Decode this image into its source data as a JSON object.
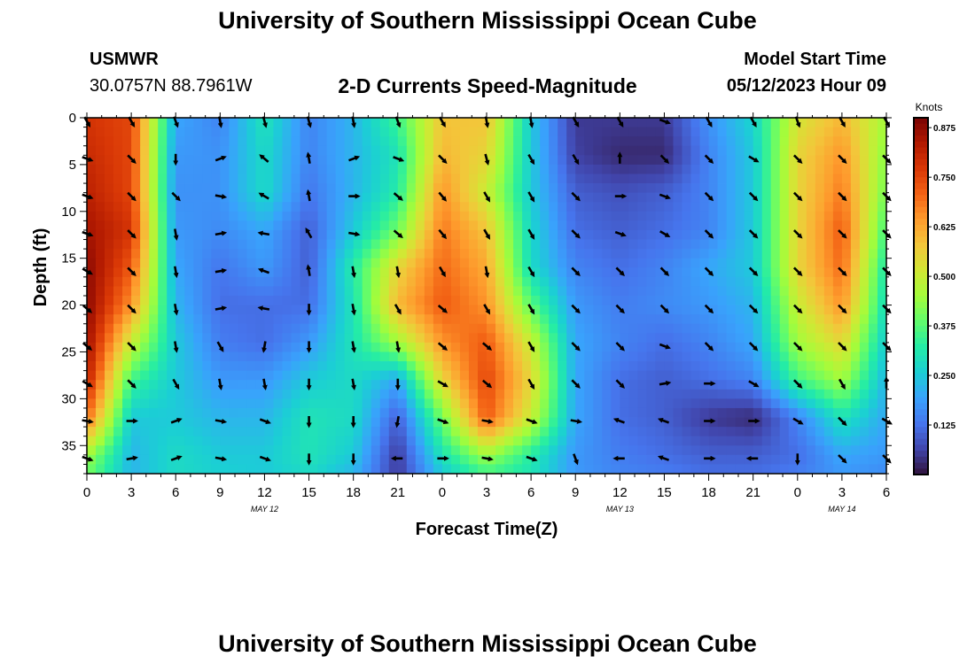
{
  "title": "University of Southern Mississippi Ocean Cube",
  "station": {
    "id": "USMWR",
    "coords": "30.0757N  88.7961W"
  },
  "model": {
    "label": "Model Start Time",
    "start": "05/12/2023 Hour 09"
  },
  "chart_data": {
    "type": "heatmap",
    "title": "2-D Currents Speed-Magnitude",
    "xlabel": "Forecast Time(Z)",
    "ylabel": "Depth (ft)",
    "x_unit": "forecast hours from 0Z May 12",
    "xlim": [
      0,
      54
    ],
    "ylim": [
      38,
      0
    ],
    "x_ticks": [
      {
        "hour": 0,
        "label": "0"
      },
      {
        "hour": 3,
        "label": "3"
      },
      {
        "hour": 6,
        "label": "6"
      },
      {
        "hour": 9,
        "label": "9"
      },
      {
        "hour": 12,
        "label": "12"
      },
      {
        "hour": 15,
        "label": "15"
      },
      {
        "hour": 18,
        "label": "18"
      },
      {
        "hour": 21,
        "label": "21"
      },
      {
        "hour": 24,
        "label": "0"
      },
      {
        "hour": 27,
        "label": "3"
      },
      {
        "hour": 30,
        "label": "6"
      },
      {
        "hour": 33,
        "label": "9"
      },
      {
        "hour": 36,
        "label": "12"
      },
      {
        "hour": 39,
        "label": "15"
      },
      {
        "hour": 42,
        "label": "18"
      },
      {
        "hour": 45,
        "label": "21"
      },
      {
        "hour": 48,
        "label": "0"
      },
      {
        "hour": 51,
        "label": "3"
      },
      {
        "hour": 54,
        "label": "6"
      }
    ],
    "date_labels": [
      {
        "hour": 12,
        "label": "MAY 12"
      },
      {
        "hour": 36,
        "label": "MAY 13"
      },
      {
        "hour": 51,
        "label": "MAY 14"
      }
    ],
    "y_ticks": [
      0,
      5,
      10,
      15,
      20,
      25,
      30,
      35
    ],
    "colorbar": {
      "unit": "Knots",
      "min": 0.0,
      "max": 0.9,
      "ticks": [
        "0.875",
        "0.750",
        "0.625",
        "0.500",
        "0.375",
        "0.250",
        "0.125"
      ],
      "tick_values": [
        0.875,
        0.75,
        0.625,
        0.5,
        0.375,
        0.25,
        0.125
      ],
      "colors": [
        "#30123b",
        "#4145ab",
        "#4675ed",
        "#39a2fc",
        "#1bcfd4",
        "#24eca6",
        "#61fc6c",
        "#a4fc3b",
        "#d1e834",
        "#f3c63a",
        "#fe9b2d",
        "#f36315",
        "#d93806",
        "#b11901",
        "#7a0403"
      ]
    },
    "speed_grid": {
      "hours": [
        0,
        3,
        6,
        9,
        12,
        15,
        18,
        21,
        24,
        27,
        30,
        33,
        36,
        39,
        42,
        45,
        48,
        51,
        54
      ],
      "depths": [
        0,
        4,
        8,
        12,
        16,
        20,
        24,
        28,
        32,
        36,
        38
      ],
      "values": [
        [
          0.78,
          0.75,
          0.2,
          0.15,
          0.3,
          0.15,
          0.22,
          0.35,
          0.58,
          0.58,
          0.25,
          0.05,
          0.05,
          0.05,
          0.17,
          0.27,
          0.52,
          0.6,
          0.45
        ],
        [
          0.8,
          0.75,
          0.18,
          0.17,
          0.28,
          0.15,
          0.22,
          0.3,
          0.6,
          0.55,
          0.25,
          0.06,
          0.03,
          0.03,
          0.15,
          0.25,
          0.55,
          0.65,
          0.42
        ],
        [
          0.82,
          0.75,
          0.17,
          0.17,
          0.28,
          0.13,
          0.22,
          0.32,
          0.65,
          0.5,
          0.25,
          0.1,
          0.08,
          0.1,
          0.15,
          0.25,
          0.55,
          0.68,
          0.4
        ],
        [
          0.85,
          0.78,
          0.18,
          0.16,
          0.2,
          0.1,
          0.25,
          0.4,
          0.68,
          0.58,
          0.27,
          0.12,
          0.1,
          0.12,
          0.15,
          0.25,
          0.55,
          0.72,
          0.35
        ],
        [
          0.88,
          0.72,
          0.2,
          0.13,
          0.18,
          0.1,
          0.32,
          0.55,
          0.7,
          0.62,
          0.28,
          0.15,
          0.12,
          0.15,
          0.2,
          0.25,
          0.55,
          0.7,
          0.3
        ],
        [
          0.88,
          0.65,
          0.22,
          0.12,
          0.12,
          0.12,
          0.3,
          0.6,
          0.72,
          0.65,
          0.38,
          0.18,
          0.14,
          0.16,
          0.18,
          0.22,
          0.5,
          0.65,
          0.28
        ],
        [
          0.86,
          0.5,
          0.25,
          0.14,
          0.12,
          0.18,
          0.3,
          0.45,
          0.65,
          0.72,
          0.5,
          0.2,
          0.15,
          0.12,
          0.15,
          0.2,
          0.45,
          0.55,
          0.25
        ],
        [
          0.82,
          0.35,
          0.25,
          0.18,
          0.18,
          0.25,
          0.28,
          0.2,
          0.55,
          0.75,
          0.55,
          0.2,
          0.12,
          0.1,
          0.12,
          0.15,
          0.35,
          0.45,
          0.22
        ],
        [
          0.7,
          0.25,
          0.25,
          0.22,
          0.22,
          0.3,
          0.28,
          0.1,
          0.4,
          0.72,
          0.5,
          0.2,
          0.12,
          0.1,
          0.05,
          0.03,
          0.15,
          0.3,
          0.2
        ],
        [
          0.45,
          0.22,
          0.28,
          0.25,
          0.25,
          0.3,
          0.25,
          0.05,
          0.3,
          0.45,
          0.32,
          0.18,
          0.14,
          0.12,
          0.1,
          0.1,
          0.12,
          0.2,
          0.18
        ],
        [
          0.4,
          0.22,
          0.28,
          0.26,
          0.25,
          0.28,
          0.22,
          0.05,
          0.25,
          0.35,
          0.3,
          0.18,
          0.15,
          0.14,
          0.12,
          0.12,
          0.14,
          0.18,
          0.16
        ]
      ]
    },
    "arrows": {
      "depths": [
        0,
        4,
        8,
        12,
        16,
        20,
        24,
        28,
        32,
        36
      ],
      "direction_degrees_math": [
        [
          -60,
          -60,
          -70,
          -80,
          -75,
          -75,
          -80,
          -70,
          -60,
          -80,
          -80,
          -60,
          -60,
          -20,
          -60,
          -60,
          -70,
          -60,
          -60
        ],
        [
          -20,
          -45,
          -90,
          20,
          140,
          100,
          20,
          -20,
          -45,
          -75,
          -60,
          -60,
          90,
          -45,
          -45,
          -30,
          -45,
          -45,
          -45
        ],
        [
          -20,
          -45,
          -45,
          -10,
          150,
          100,
          0,
          -40,
          -50,
          -60,
          -60,
          -45,
          0,
          -20,
          -45,
          -45,
          -45,
          -45,
          -45
        ],
        [
          -20,
          -45,
          -80,
          10,
          170,
          120,
          -10,
          -40,
          -50,
          -60,
          -60,
          -45,
          -20,
          -30,
          -45,
          -45,
          -45,
          -45,
          -45
        ],
        [
          -30,
          -45,
          -80,
          10,
          160,
          100,
          -80,
          -80,
          -60,
          -80,
          -60,
          -45,
          -45,
          -45,
          -45,
          -45,
          -45,
          -45,
          -45
        ],
        [
          -40,
          -45,
          -80,
          10,
          170,
          -90,
          -80,
          -60,
          -40,
          -60,
          -60,
          -45,
          -45,
          -45,
          -45,
          -45,
          -45,
          -45,
          -45
        ],
        [
          -40,
          -45,
          -80,
          -60,
          -100,
          -90,
          -80,
          -80,
          -40,
          -40,
          -60,
          -45,
          -45,
          -20,
          -45,
          -45,
          -45,
          -45,
          -45
        ],
        [
          -30,
          -45,
          -60,
          -80,
          -80,
          -90,
          -80,
          -90,
          -30,
          -40,
          -60,
          -45,
          -45,
          10,
          0,
          -30,
          -45,
          -60,
          90
        ],
        [
          -10,
          0,
          20,
          -10,
          -20,
          -90,
          -90,
          -100,
          -20,
          -10,
          -20,
          -10,
          160,
          160,
          0,
          0,
          -30,
          -45,
          -30
        ],
        [
          -20,
          10,
          20,
          -10,
          -20,
          -90,
          -90,
          180,
          0,
          -10,
          -20,
          -70,
          180,
          160,
          0,
          180,
          -90,
          -45,
          -45
        ]
      ]
    }
  }
}
